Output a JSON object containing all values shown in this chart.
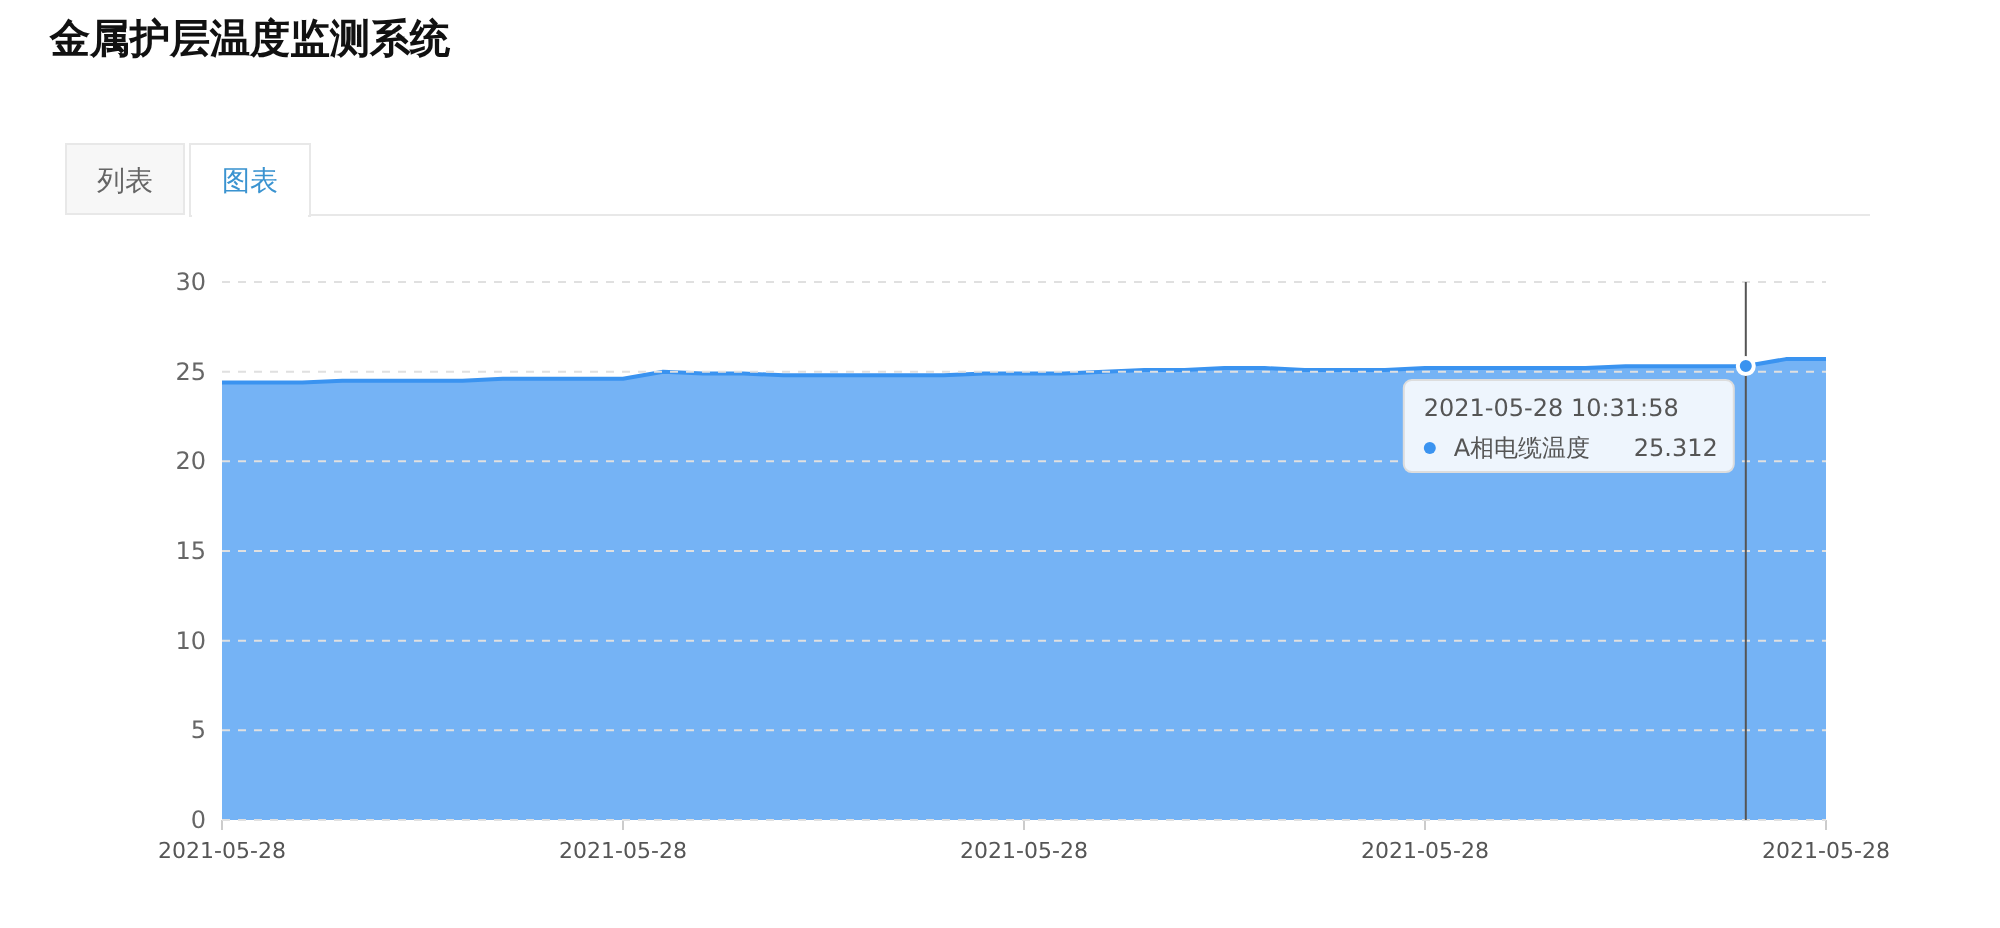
{
  "chart_data": {
    "type": "area",
    "title": "金属护层温度监测系统",
    "annotations": [
      "列表",
      "图表",
      "2021-05-28 10:31:58"
    ],
    "categories": [
      "2021-05-28",
      null,
      null,
      null,
      null,
      null,
      null,
      null,
      null,
      null,
      "2021-05-28",
      null,
      null,
      null,
      null,
      null,
      null,
      null,
      null,
      null,
      "2021-05-28",
      null,
      null,
      null,
      null,
      null,
      null,
      null,
      null,
      null,
      "2021-05-28",
      null,
      null,
      null,
      null,
      null,
      null,
      null,
      null,
      null,
      "2021-05-28"
    ],
    "series": [
      {
        "name": "A相电缆温度",
        "color": "#3a93f0",
        "values": [
          24.4,
          24.4,
          24.4,
          24.5,
          24.5,
          24.5,
          24.5,
          24.6,
          24.6,
          24.6,
          24.6,
          25.0,
          24.9,
          24.9,
          24.8,
          24.8,
          24.8,
          24.8,
          24.8,
          24.9,
          24.9,
          24.9,
          25.0,
          25.1,
          25.1,
          25.2,
          25.2,
          25.1,
          25.1,
          25.1,
          25.2,
          25.2,
          25.2,
          25.2,
          25.2,
          25.3,
          25.3,
          25.3,
          25.312,
          25.7,
          25.7
        ],
        "value_labels": [
          null,
          null,
          null,
          null,
          null,
          null,
          null,
          null,
          null,
          null,
          null,
          null,
          null,
          null,
          null,
          null,
          null,
          null,
          null,
          null,
          null,
          null,
          null,
          null,
          null,
          null,
          null,
          null,
          null,
          null,
          null,
          null,
          null,
          null,
          null,
          null,
          null,
          null,
          "25.312",
          null,
          null
        ]
      }
    ],
    "ylim": [
      0,
      30
    ],
    "yticks": [
      0,
      5,
      10,
      15,
      20,
      25,
      30
    ],
    "grid": "y",
    "legend": "right",
    "marker": "none",
    "line_style": "solid"
  }
}
